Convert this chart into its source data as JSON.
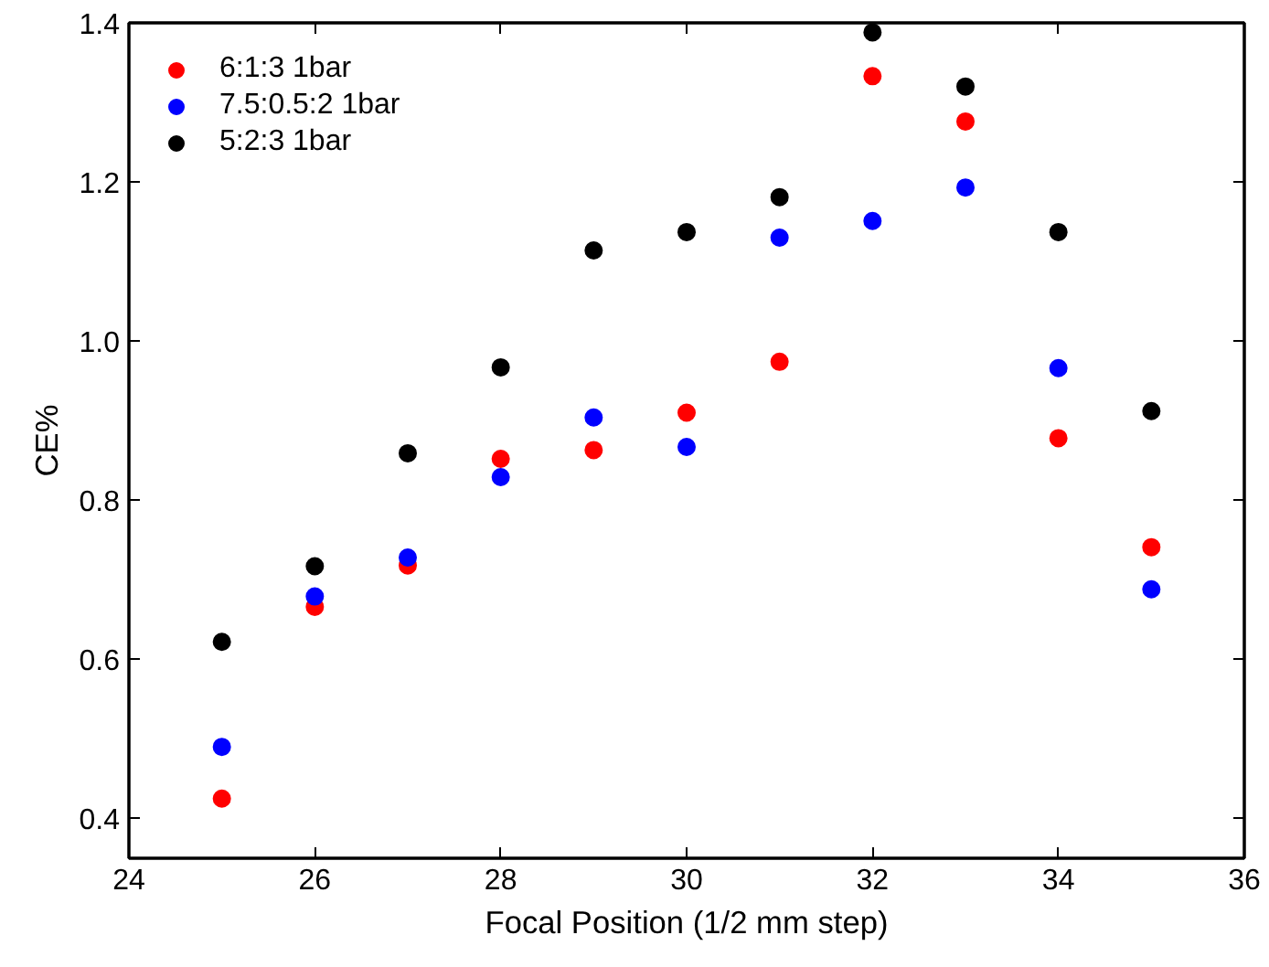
{
  "chart_data": {
    "type": "scatter",
    "xlabel": "Focal Position (1/2 mm step)",
    "ylabel": "CE%",
    "x": [
      25,
      26,
      27,
      28,
      29,
      30,
      31,
      32,
      33,
      34,
      35
    ],
    "series": [
      {
        "name": "6:1:3 1bar",
        "color": "#ff0000",
        "values": [
          0.425,
          0.666,
          0.718,
          0.852,
          0.863,
          0.91,
          0.974,
          1.333,
          1.276,
          0.878,
          0.741
        ]
      },
      {
        "name": "7.5:0.5:2 1bar",
        "color": "#0000ff",
        "values": [
          0.49,
          0.679,
          0.728,
          0.829,
          0.904,
          0.867,
          1.13,
          1.151,
          1.193,
          0.966,
          0.688
        ]
      },
      {
        "name": "5:2:3 1bar",
        "color": "#000000",
        "values": [
          0.622,
          0.717,
          0.859,
          0.967,
          1.114,
          1.137,
          1.181,
          1.388,
          1.32,
          1.137,
          0.912
        ]
      }
    ],
    "xlim": [
      24,
      36
    ],
    "ylim": [
      0.35,
      1.4
    ],
    "xticks": [
      24,
      26,
      28,
      30,
      32,
      34,
      36
    ],
    "yticks": [
      {
        "value": 0.4,
        "label": "0.4"
      },
      {
        "value": 0.6,
        "label": "0.6"
      },
      {
        "value": 0.8,
        "label": "0.8"
      },
      {
        "value": 1.0,
        "label": "1.0"
      },
      {
        "value": 1.2,
        "label": "1.2"
      },
      {
        "value": 1.4,
        "label": "1.4"
      }
    ],
    "marker": "circle",
    "legend": "top left",
    "grid": false
  }
}
